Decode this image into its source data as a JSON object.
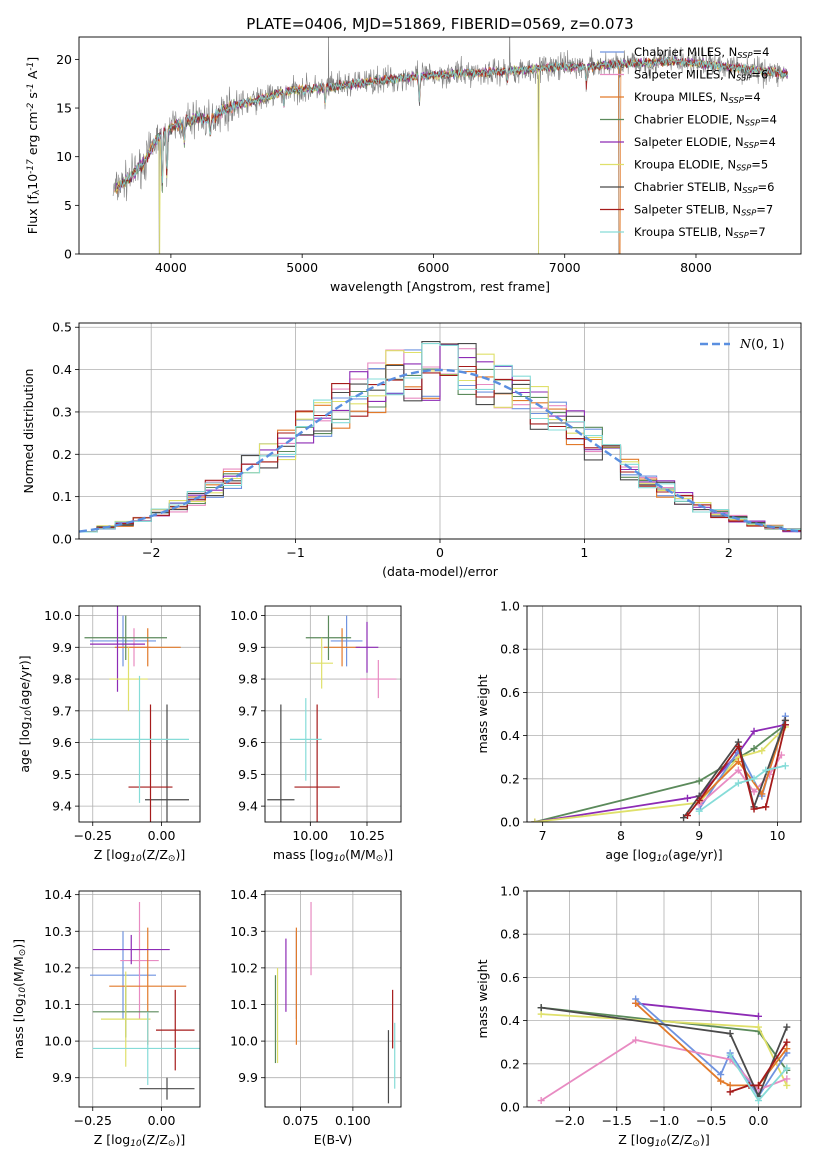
{
  "colors": {
    "chab_miles": "#6f93e0",
    "salp_miles": "#e88bc2",
    "krou_miles": "#e27a2a",
    "chab_elodie": "#5b8a5b",
    "salp_elodie": "#8d2bb5",
    "krou_elodie": "#dfe06a",
    "chab_stelib": "#4a4a4a",
    "salp_stelib": "#a51b1b",
    "krou_stelib": "#86dcd8",
    "spectrum": "#808080",
    "gauss": "#5a8fe0"
  },
  "chart_data": [
    {
      "id": "spectrum",
      "type": "line",
      "title": "PLATE=0406, MJD=51869, FIBERID=0569, z=0.073",
      "xlabel": "wavelength [Angstrom, rest frame]",
      "ylabel": "Flux [f$_\\lambda$10$^{-17}$ erg cm$^{-2}$ s$^{-1}$ A$^{-1}$]",
      "xlim": [
        3300,
        8800
      ],
      "ylim": [
        0,
        22.3
      ],
      "xticks": [
        4000,
        5000,
        6000,
        7000,
        8000
      ],
      "yticks": [
        0,
        5,
        10,
        15,
        20
      ],
      "grid": false,
      "legend_position": "top-right",
      "continuum": {
        "x": [
          3560,
          3700,
          3800,
          3900,
          4000,
          4100,
          4200,
          4300,
          4400,
          4500,
          4700,
          4900,
          5100,
          5300,
          5500,
          5700,
          6000,
          6300,
          6600,
          6900,
          7200,
          7500,
          7800,
          8100,
          8400,
          8700
        ],
        "y": [
          6.5,
          8.0,
          9.5,
          12.0,
          13.0,
          13.5,
          14.0,
          13.8,
          14.8,
          15.3,
          16.0,
          16.8,
          17.0,
          17.3,
          17.7,
          18.0,
          18.4,
          18.6,
          18.8,
          19.2,
          19.3,
          19.6,
          19.8,
          19.5,
          19.0,
          18.5
        ]
      },
      "series": [
        {
          "name": "Chabrier MILES, N$_{SSP}$=4",
          "color_key": "chab_miles"
        },
        {
          "name": "Salpeter MILES, N$_{SSP}$=6",
          "color_key": "salp_miles"
        },
        {
          "name": "Kroupa MILES, N$_{SSP}$=4",
          "color_key": "krou_miles"
        },
        {
          "name": "Chabrier ELODIE, N$_{SSP}$=4",
          "color_key": "chab_elodie"
        },
        {
          "name": "Salpeter ELODIE, N$_{SSP}$=4",
          "color_key": "salp_elodie"
        },
        {
          "name": "Kroupa ELODIE, N$_{SSP}$=5",
          "color_key": "krou_elodie"
        },
        {
          "name": "Chabrier STELIB, N$_{SSP}$=6",
          "color_key": "chab_stelib"
        },
        {
          "name": "Salpeter STELIB, N$_{SSP}$=7",
          "color_key": "salp_stelib"
        },
        {
          "name": "Kroupa STELIB, N$_{SSP}$=7",
          "color_key": "krou_stelib"
        }
      ]
    },
    {
      "id": "residuals",
      "type": "line",
      "xlabel": "(data-model)/error",
      "ylabel": "Normed distribution",
      "xlim": [
        -2.5,
        2.5
      ],
      "ylim": [
        0,
        0.51
      ],
      "xticks": [
        -2,
        -1,
        0,
        1,
        2
      ],
      "yticks": [
        0.0,
        0.1,
        0.2,
        0.3,
        0.4,
        0.5
      ],
      "grid": true,
      "legend_position": "top-right",
      "gauss_label": "$\\mathcal{N}(0,1)$"
    },
    {
      "id": "age_vs_Z",
      "type": "scatter",
      "xlabel": "Z [log$_{10}$(Z/Z$_\\odot$)]",
      "ylabel": "age  [log$_{10}$(age/yr)]",
      "xlim": [
        -0.3,
        0.14
      ],
      "ylim": [
        9.35,
        10.03
      ],
      "xticks": [
        -0.25,
        0.0
      ],
      "yticks": [
        9.4,
        9.5,
        9.6,
        9.7,
        9.8,
        9.9,
        10.0
      ],
      "grid": true,
      "points": [
        {
          "k": "chab_miles",
          "x": -0.14,
          "xe": 0.12,
          "y": 9.92,
          "ye": 0.08
        },
        {
          "k": "salp_miles",
          "x": -0.1,
          "xe": 0.06,
          "y": 9.9,
          "ye": 0.06
        },
        {
          "k": "krou_miles",
          "x": -0.05,
          "xe": 0.12,
          "y": 9.9,
          "ye": 0.06
        },
        {
          "k": "chab_elodie",
          "x": -0.13,
          "xe": 0.15,
          "y": 9.93,
          "ye": 0.07
        },
        {
          "k": "salp_elodie",
          "x": -0.16,
          "xe": 0.1,
          "y": 9.91,
          "ye": 0.15
        },
        {
          "k": "krou_elodie",
          "x": -0.12,
          "xe": 0.07,
          "y": 9.8,
          "ye": 0.1
        },
        {
          "k": "chab_stelib",
          "x": 0.02,
          "xe": 0.08,
          "y": 9.42,
          "ye": 0.3
        },
        {
          "k": "salp_stelib",
          "x": -0.04,
          "xe": 0.08,
          "y": 9.46,
          "ye": 0.26
        },
        {
          "k": "krou_stelib",
          "x": -0.08,
          "xe": 0.18,
          "y": 9.61,
          "ye": 0.2
        }
      ]
    },
    {
      "id": "age_vs_mass",
      "type": "scatter",
      "xlabel": "mass [log$_{10}$(M/M$_\\odot$)]",
      "ylabel": "",
      "xlim": [
        9.8,
        10.4
      ],
      "ylim": [
        9.35,
        10.03
      ],
      "xticks": [
        10.0,
        10.25
      ],
      "yticks": [
        9.4,
        9.5,
        9.6,
        9.7,
        9.8,
        9.9,
        10.0
      ],
      "grid": true,
      "points": [
        {
          "k": "chab_miles",
          "x": 10.16,
          "xe": 0.07,
          "y": 9.92,
          "ye": 0.08
        },
        {
          "k": "salp_miles",
          "x": 10.3,
          "xe": 0.08,
          "y": 9.8,
          "ye": 0.06
        },
        {
          "k": "krou_miles",
          "x": 10.14,
          "xe": 0.08,
          "y": 9.9,
          "ye": 0.06
        },
        {
          "k": "chab_elodie",
          "x": 10.08,
          "xe": 0.1,
          "y": 9.93,
          "ye": 0.07
        },
        {
          "k": "salp_elodie",
          "x": 10.25,
          "xe": 0.05,
          "y": 9.9,
          "ye": 0.08
        },
        {
          "k": "krou_elodie",
          "x": 10.05,
          "xe": 0.05,
          "y": 9.85,
          "ye": 0.08
        },
        {
          "k": "chab_stelib",
          "x": 9.87,
          "xe": 0.06,
          "y": 9.42,
          "ye": 0.3
        },
        {
          "k": "salp_stelib",
          "x": 10.03,
          "xe": 0.1,
          "y": 9.46,
          "ye": 0.26
        },
        {
          "k": "krou_stelib",
          "x": 9.98,
          "xe": 0.07,
          "y": 9.61,
          "ye": 0.13
        }
      ]
    },
    {
      "id": "weight_vs_age",
      "type": "line",
      "xlabel": "age  [log$_{10}$(age/yr)]",
      "ylabel": "mass weight",
      "xlim": [
        6.8,
        10.3
      ],
      "ylim": [
        0,
        1.0
      ],
      "xticks": [
        7,
        8,
        9,
        10
      ],
      "yticks": [
        0.0,
        0.2,
        0.4,
        0.6,
        0.8,
        1.0
      ],
      "grid": true,
      "lines": [
        {
          "k": "chab_elodie",
          "x": [
            6.9,
            9.0,
            9.7,
            10.1
          ],
          "y": [
            0.0,
            0.19,
            0.34,
            0.45
          ]
        },
        {
          "k": "salp_elodie",
          "x": [
            6.9,
            8.85,
            9.0,
            9.5,
            9.7,
            10.1
          ],
          "y": [
            0.0,
            0.11,
            0.12,
            0.32,
            0.42,
            0.45
          ]
        },
        {
          "k": "krou_elodie",
          "x": [
            6.9,
            9.0,
            9.5,
            9.8,
            10.1
          ],
          "y": [
            0.0,
            0.09,
            0.3,
            0.33,
            0.44
          ]
        },
        {
          "k": "chab_miles",
          "x": [
            9.0,
            9.5,
            9.8,
            10.1
          ],
          "y": [
            0.06,
            0.33,
            0.12,
            0.49
          ]
        },
        {
          "k": "salp_miles",
          "x": [
            9.0,
            9.5,
            9.7,
            9.9,
            10.05
          ],
          "y": [
            0.08,
            0.24,
            0.14,
            0.22,
            0.31
          ]
        },
        {
          "k": "krou_miles",
          "x": [
            9.0,
            9.5,
            9.8,
            10.1
          ],
          "y": [
            0.1,
            0.28,
            0.13,
            0.47
          ]
        },
        {
          "k": "chab_stelib",
          "x": [
            8.8,
            9.0,
            9.5,
            9.7,
            10.1
          ],
          "y": [
            0.02,
            0.12,
            0.37,
            0.07,
            0.47
          ]
        },
        {
          "k": "salp_stelib",
          "x": [
            8.85,
            9.0,
            9.5,
            9.7,
            9.85,
            10.1
          ],
          "y": [
            0.03,
            0.1,
            0.35,
            0.06,
            0.07,
            0.45
          ]
        },
        {
          "k": "krou_stelib",
          "x": [
            9.0,
            9.5,
            9.7,
            9.85,
            10.1
          ],
          "y": [
            0.05,
            0.18,
            0.2,
            0.24,
            0.26
          ]
        }
      ]
    },
    {
      "id": "mass_vs_Z",
      "type": "scatter",
      "xlabel": "Z [log$_{10}$(Z/Z$_\\odot$)]",
      "ylabel": "mass [log$_{10}$(M/M$_\\odot$)]",
      "xlim": [
        -0.3,
        0.14
      ],
      "ylim": [
        9.82,
        10.41
      ],
      "xticks": [
        -0.25,
        0.0
      ],
      "yticks": [
        9.9,
        10.0,
        10.1,
        10.2,
        10.3,
        10.4
      ],
      "grid": true,
      "points": [
        {
          "k": "chab_miles",
          "x": -0.14,
          "xe": 0.12,
          "y": 10.18,
          "ye": 0.12
        },
        {
          "k": "salp_miles",
          "x": -0.08,
          "xe": 0.07,
          "y": 10.22,
          "ye": 0.16
        },
        {
          "k": "krou_miles",
          "x": -0.05,
          "xe": 0.14,
          "y": 10.15,
          "ye": 0.16
        },
        {
          "k": "chab_elodie",
          "x": -0.13,
          "xe": 0.12,
          "y": 10.08,
          "ye": 0.07
        },
        {
          "k": "salp_elodie",
          "x": -0.11,
          "xe": 0.14,
          "y": 10.25,
          "ye": 0.04
        },
        {
          "k": "krou_elodie",
          "x": -0.13,
          "xe": 0.09,
          "y": 10.06,
          "ye": 0.13
        },
        {
          "k": "chab_stelib",
          "x": 0.02,
          "xe": 0.1,
          "y": 9.87,
          "ye": 0.03
        },
        {
          "k": "salp_stelib",
          "x": 0.05,
          "xe": 0.07,
          "y": 10.03,
          "ye": 0.11
        },
        {
          "k": "krou_stelib",
          "x": -0.05,
          "xe": 0.2,
          "y": 9.98,
          "ye": 0.1
        }
      ]
    },
    {
      "id": "mass_vs_EBV",
      "type": "scatter",
      "xlabel": "E(B-V)",
      "ylabel": "",
      "xlim": [
        0.058,
        0.123
      ],
      "ylim": [
        9.82,
        10.41
      ],
      "xticks": [
        0.075,
        0.1
      ],
      "yticks": [
        9.9,
        10.0,
        10.1,
        10.2,
        10.3,
        10.4
      ],
      "grid": true,
      "points": [
        {
          "k": "chab_miles",
          "x": 0.073,
          "xe": 0,
          "y": 10.18,
          "ye": 0.12
        },
        {
          "k": "salp_miles",
          "x": 0.08,
          "xe": 0,
          "y": 10.28,
          "ye": 0.1
        },
        {
          "k": "krou_miles",
          "x": 0.073,
          "xe": 0,
          "y": 10.15,
          "ye": 0.16
        },
        {
          "k": "chab_elodie",
          "x": 0.063,
          "xe": 0,
          "y": 10.06,
          "ye": 0.12
        },
        {
          "k": "salp_elodie",
          "x": 0.068,
          "xe": 0,
          "y": 10.18,
          "ye": 0.1
        },
        {
          "k": "krou_elodie",
          "x": 0.064,
          "xe": 0,
          "y": 10.07,
          "ye": 0.13
        },
        {
          "k": "chab_stelib",
          "x": 0.117,
          "xe": 0,
          "y": 9.93,
          "ye": 0.1
        },
        {
          "k": "salp_stelib",
          "x": 0.119,
          "xe": 0,
          "y": 10.06,
          "ye": 0.08
        },
        {
          "k": "krou_stelib",
          "x": 0.12,
          "xe": 0,
          "y": 9.96,
          "ye": 0.09
        }
      ]
    },
    {
      "id": "weight_vs_Z",
      "type": "line",
      "xlabel": "Z [log$_{10}$(Z/Z$_\\odot$)]",
      "ylabel": "mass weight",
      "xlim": [
        -2.45,
        0.45
      ],
      "ylim": [
        0,
        1.0
      ],
      "xticks": [
        -2.0,
        -1.5,
        -1.0,
        -0.5,
        0.0
      ],
      "yticks": [
        0.0,
        0.2,
        0.4,
        0.6,
        0.8,
        1.0
      ],
      "grid": true,
      "lines": [
        {
          "k": "chab_elodie",
          "x": [
            -2.3,
            0.0,
            0.3
          ],
          "y": [
            0.46,
            0.35,
            0.17
          ]
        },
        {
          "k": "krou_elodie",
          "x": [
            -2.3,
            0.0,
            0.3
          ],
          "y": [
            0.43,
            0.37,
            0.1
          ]
        },
        {
          "k": "salp_elodie",
          "x": [
            -1.3,
            0.0
          ],
          "y": [
            0.48,
            0.42
          ]
        },
        {
          "k": "chab_miles",
          "x": [
            -1.3,
            -0.4,
            -0.3,
            0.0,
            0.3
          ],
          "y": [
            0.5,
            0.15,
            0.25,
            0.05,
            0.25
          ]
        },
        {
          "k": "salp_miles",
          "x": [
            -2.3,
            -1.3,
            -0.3,
            0.0,
            0.3
          ],
          "y": [
            0.03,
            0.31,
            0.22,
            0.08,
            0.13
          ]
        },
        {
          "k": "krou_miles",
          "x": [
            -1.3,
            -0.4,
            -0.3,
            0.0,
            0.3
          ],
          "y": [
            0.48,
            0.12,
            0.1,
            0.1,
            0.27
          ]
        },
        {
          "k": "chab_stelib",
          "x": [
            -2.3,
            -0.3,
            0.0,
            0.3
          ],
          "y": [
            0.46,
            0.34,
            0.05,
            0.37
          ]
        },
        {
          "k": "salp_stelib",
          "x": [
            -0.3,
            -0.1,
            0.0,
            0.3
          ],
          "y": [
            0.07,
            0.1,
            0.1,
            0.3
          ]
        },
        {
          "k": "krou_stelib",
          "x": [
            -0.3,
            0.0,
            0.3
          ],
          "y": [
            0.24,
            0.03,
            0.18
          ]
        }
      ]
    }
  ]
}
